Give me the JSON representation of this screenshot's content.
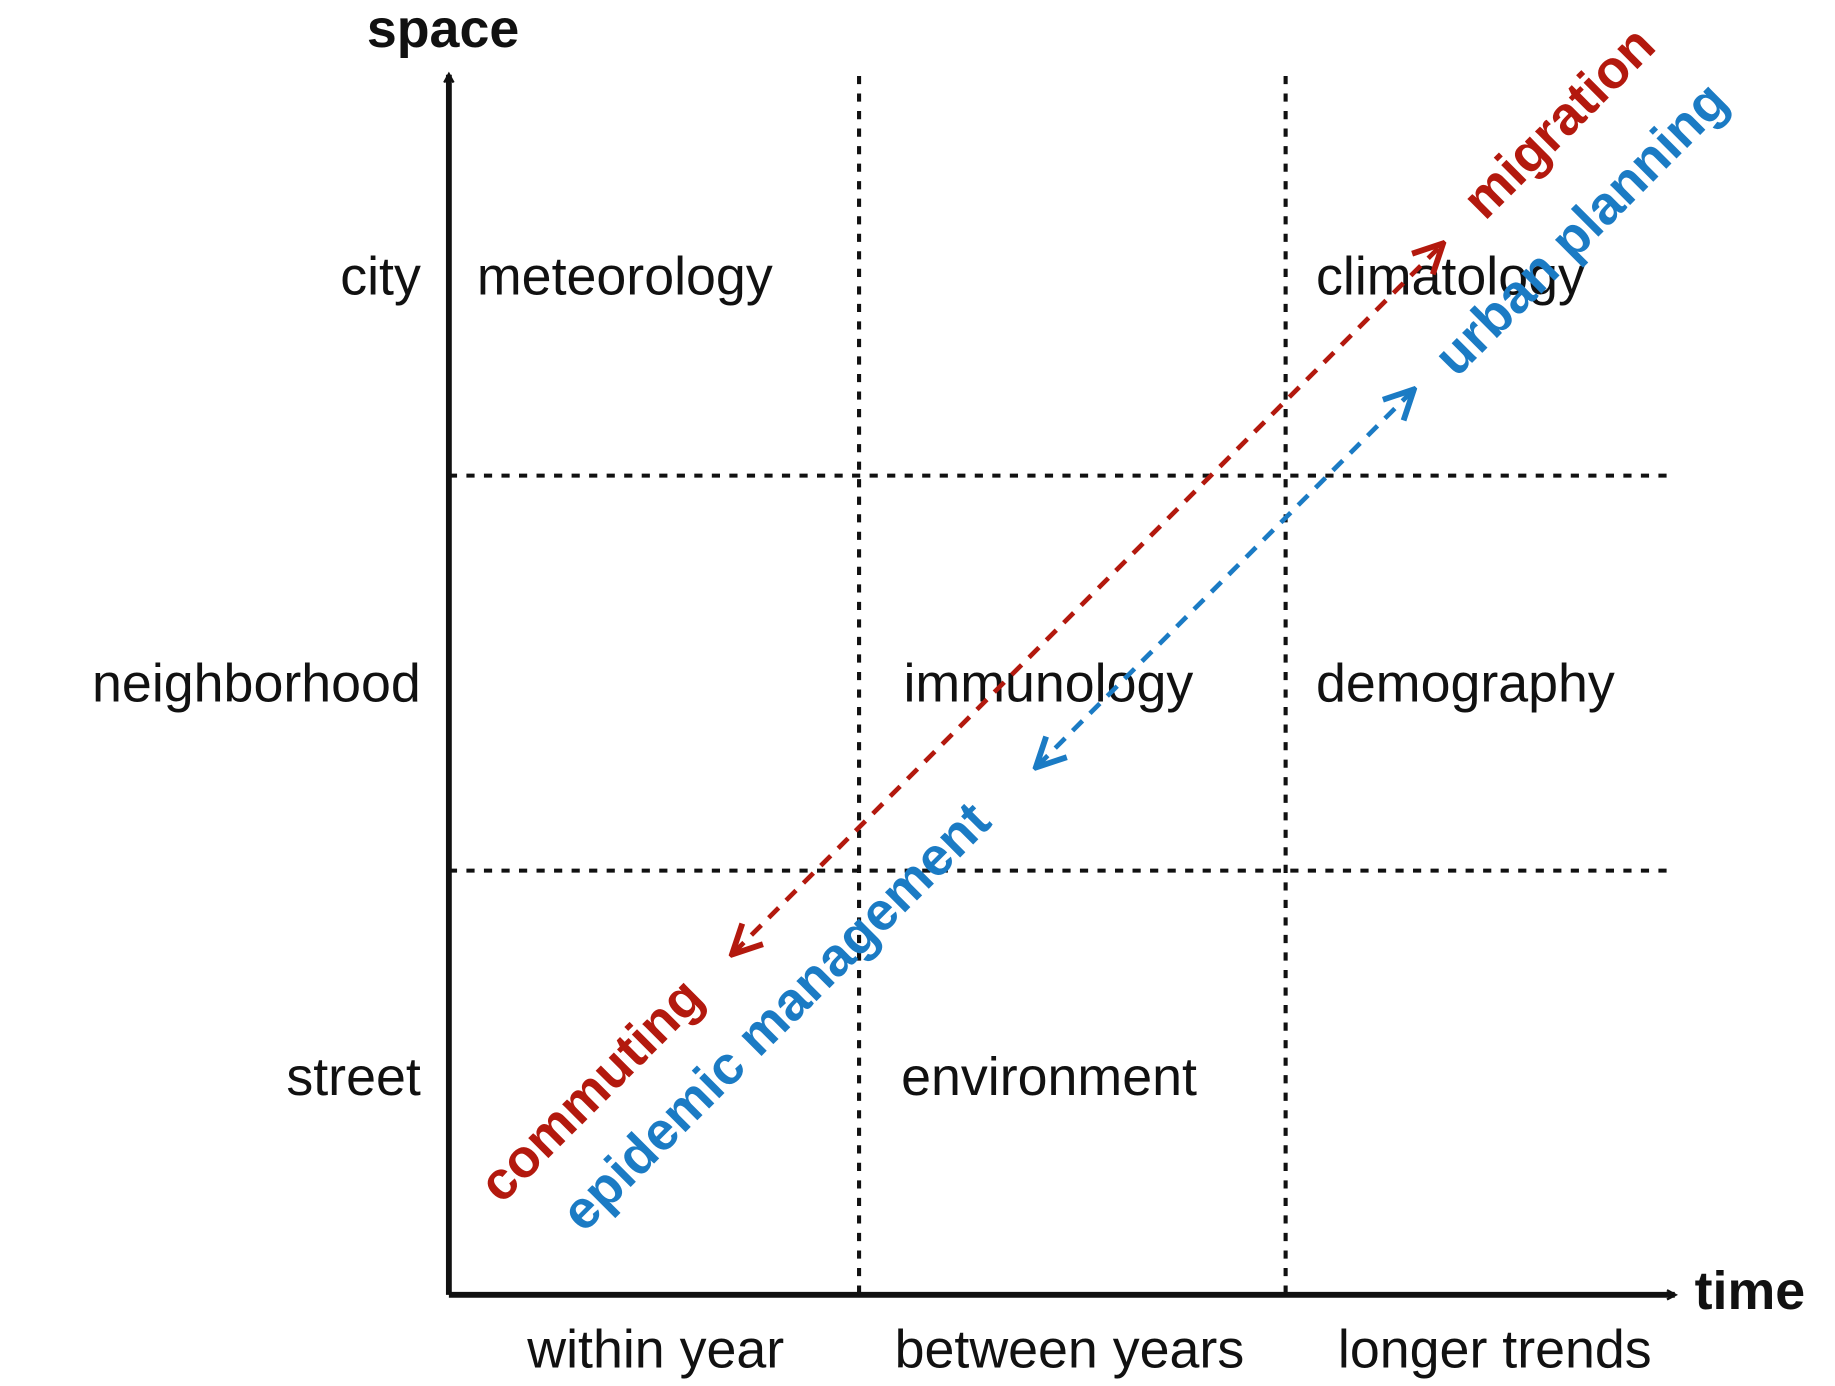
{
  "axes": {
    "y": "space",
    "x": "time"
  },
  "rows": [
    "city",
    "neighborhood",
    "street"
  ],
  "columns": [
    "within year",
    "between years",
    "longer trends"
  ],
  "cells": [
    "meteorology",
    "climatology",
    "immunology",
    "demography",
    "environment"
  ],
  "arrows": [
    {
      "from": "commuting",
      "to": "migration",
      "color": "#b3190e"
    },
    {
      "from": "epidemic management",
      "to": "urban planning",
      "color": "#1b7bc4"
    }
  ]
}
